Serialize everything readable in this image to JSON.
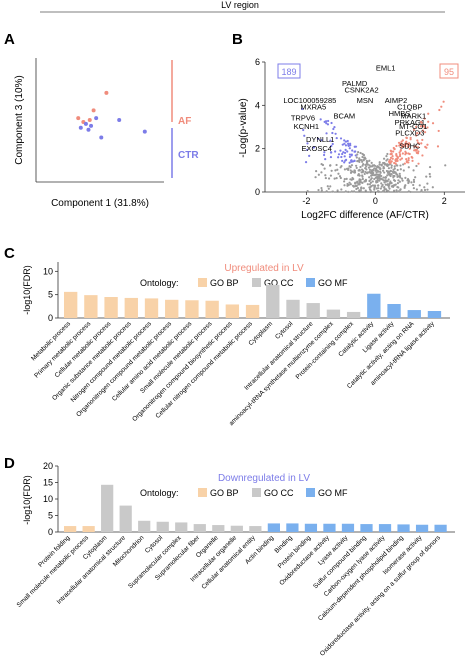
{
  "header": {
    "title": "LV region"
  },
  "panel_letters": {
    "a": "A",
    "b": "B",
    "c": "C",
    "d": "D"
  },
  "colors": {
    "af": "#f08c7c",
    "ctr": "#7c7ce8",
    "gray": "#9a9a9a",
    "bp": "#f8d2a8",
    "cc": "#c9c9c9",
    "mf": "#7ab0ee",
    "up_title": "#f08c7c",
    "down_title": "#7c7ce8"
  },
  "chart_data": [
    {
      "id": "pca",
      "type": "scatter",
      "xlabel": "Component 1 (31.8%)",
      "ylabel": "Component 3 (10%)",
      "xlim": [
        -45,
        55
      ],
      "ylim": [
        -32,
        32
      ],
      "group_labels": {
        "af": "AF",
        "ctr": "CTR"
      },
      "series": [
        {
          "group": "af",
          "points": [
            [
              -12,
              1
            ],
            [
              -8,
              -1
            ],
            [
              0,
              5
            ],
            [
              10,
              14
            ],
            [
              -3,
              0
            ]
          ]
        },
        {
          "group": "ctr",
          "points": [
            [
              -10,
              -4
            ],
            [
              -6,
              -2
            ],
            [
              -2,
              -3
            ],
            [
              2,
              1
            ],
            [
              -4,
              -5
            ],
            [
              6,
              -9
            ],
            [
              40,
              -6
            ],
            [
              20,
              0
            ]
          ]
        }
      ]
    },
    {
      "id": "volcano",
      "type": "scatter",
      "xlabel": "Log2FC difference (AF/CTR)",
      "ylabel": "-Log(p-value)",
      "xlim": [
        -3.2,
        2.6
      ],
      "ylim": [
        0,
        6
      ],
      "xticks": [
        "-2",
        "0",
        "2"
      ],
      "yticks": [
        "0",
        "2",
        "4",
        "6"
      ],
      "down_count": "189",
      "up_count": "95",
      "labels": [
        {
          "text": "EML1",
          "x": 0.3,
          "y": 5.6
        },
        {
          "text": "PALMD",
          "x": -0.6,
          "y": 4.9
        },
        {
          "text": "CSNK2A2",
          "x": -0.4,
          "y": 4.6
        },
        {
          "text": "LOC100059285",
          "x": -1.9,
          "y": 4.1
        },
        {
          "text": "MXRA5",
          "x": -1.8,
          "y": 3.8
        },
        {
          "text": "MSN",
          "x": -0.3,
          "y": 4.1
        },
        {
          "text": "AIMP2",
          "x": 0.6,
          "y": 4.1
        },
        {
          "text": "TRPV6",
          "x": -2.1,
          "y": 3.3
        },
        {
          "text": "BCAM",
          "x": -0.9,
          "y": 3.4
        },
        {
          "text": "KCNH1",
          "x": -2.0,
          "y": 2.9
        },
        {
          "text": "HMBS",
          "x": 0.7,
          "y": 3.5
        },
        {
          "text": "C1QBP",
          "x": 1.0,
          "y": 3.8
        },
        {
          "text": "MARK1",
          "x": 1.1,
          "y": 3.4
        },
        {
          "text": "PRKAG1",
          "x": 1.0,
          "y": 3.1
        },
        {
          "text": "MT-CO1",
          "x": 1.1,
          "y": 2.9
        },
        {
          "text": "PLCXD3",
          "x": 1.0,
          "y": 2.6
        },
        {
          "text": "DYNLL1",
          "x": -1.6,
          "y": 2.3
        },
        {
          "text": "EXOSC4",
          "x": -1.7,
          "y": 1.9
        },
        {
          "text": "SDHC",
          "x": 1.0,
          "y": 2.0
        }
      ]
    },
    {
      "id": "go_up",
      "type": "bar",
      "title": "Upregulated in LV",
      "legend_title": "Ontology:",
      "legend": [
        "GO BP",
        "GO CC",
        "GO MF"
      ],
      "ylabel": "-log10(FDR)",
      "ylim": [
        0,
        12
      ],
      "yticks": [
        "0",
        "5",
        "10"
      ],
      "categories": [
        "Metabolic process",
        "Primary metabolic process",
        "Cellular metabolic process",
        "Organic substance metabolic process",
        "Nitrogen compound metabolic process",
        "Organonitrogen compound metabolic process",
        "Cellular amino acid metabolic process",
        "Small molecule metabolic process",
        "Organonitrogen compound biosynthetic process",
        "Cellular nitrogen compound metabolic process",
        "Cytoplasm",
        "Cytosol",
        "Intracellular anatomical structure",
        "aminoacyl-tRNA synthetase multienzyme complex",
        "Protein-containing complex",
        "Catalytic activity",
        "Ligase activity",
        "Catalytic activity, acting on RNA",
        "aminoacyl-tRNA ligase activity"
      ],
      "groups": [
        "bp",
        "bp",
        "bp",
        "bp",
        "bp",
        "bp",
        "bp",
        "bp",
        "bp",
        "bp",
        "cc",
        "cc",
        "cc",
        "cc",
        "cc",
        "mf",
        "mf",
        "mf",
        "mf"
      ],
      "values": [
        5.6,
        4.9,
        4.5,
        4.3,
        4.2,
        3.9,
        3.8,
        3.7,
        2.9,
        2.8,
        7.1,
        3.9,
        3.2,
        1.8,
        1.3,
        5.2,
        3.0,
        1.7,
        1.5
      ]
    },
    {
      "id": "go_down",
      "type": "bar",
      "title": "Downregulated in LV",
      "legend_title": "Ontology:",
      "legend": [
        "GO BP",
        "GO CC",
        "GO MF"
      ],
      "ylabel": "-log10(FDR)",
      "ylim": [
        0,
        20
      ],
      "yticks": [
        "0",
        "5",
        "10",
        "15",
        "20"
      ],
      "categories": [
        "Protein folding",
        "Small molecule metabolic process",
        "Cytoplasm",
        "Intracellular anatomical structure",
        "Mitochondrion",
        "Cytosol",
        "Supramolecular complex",
        "Supramolecular fiber",
        "Organelle",
        "Intracellular organelle",
        "Cellular anatomical entity",
        "Actin binding",
        "Binding",
        "Protein binding",
        "Oxidoreductase activity",
        "Lyase activity",
        "Sulfur compound binding",
        "Carbon-oxygen lyase activity",
        "Calcium-dependent phospholipid binding",
        "Isomerase activity",
        "Oxidoreductase activity, acting on a sulfur group of donors"
      ],
      "groups": [
        "bp",
        "bp",
        "cc",
        "cc",
        "cc",
        "cc",
        "cc",
        "cc",
        "cc",
        "cc",
        "cc",
        "mf",
        "mf",
        "mf",
        "mf",
        "mf",
        "mf",
        "mf",
        "mf",
        "mf",
        "mf"
      ],
      "values": [
        1.8,
        1.8,
        14.3,
        8.0,
        3.4,
        3.1,
        2.9,
        2.4,
        2.1,
        1.9,
        1.8,
        2.6,
        2.6,
        2.5,
        2.5,
        2.5,
        2.4,
        2.4,
        2.3,
        2.2,
        2.2
      ]
    }
  ]
}
